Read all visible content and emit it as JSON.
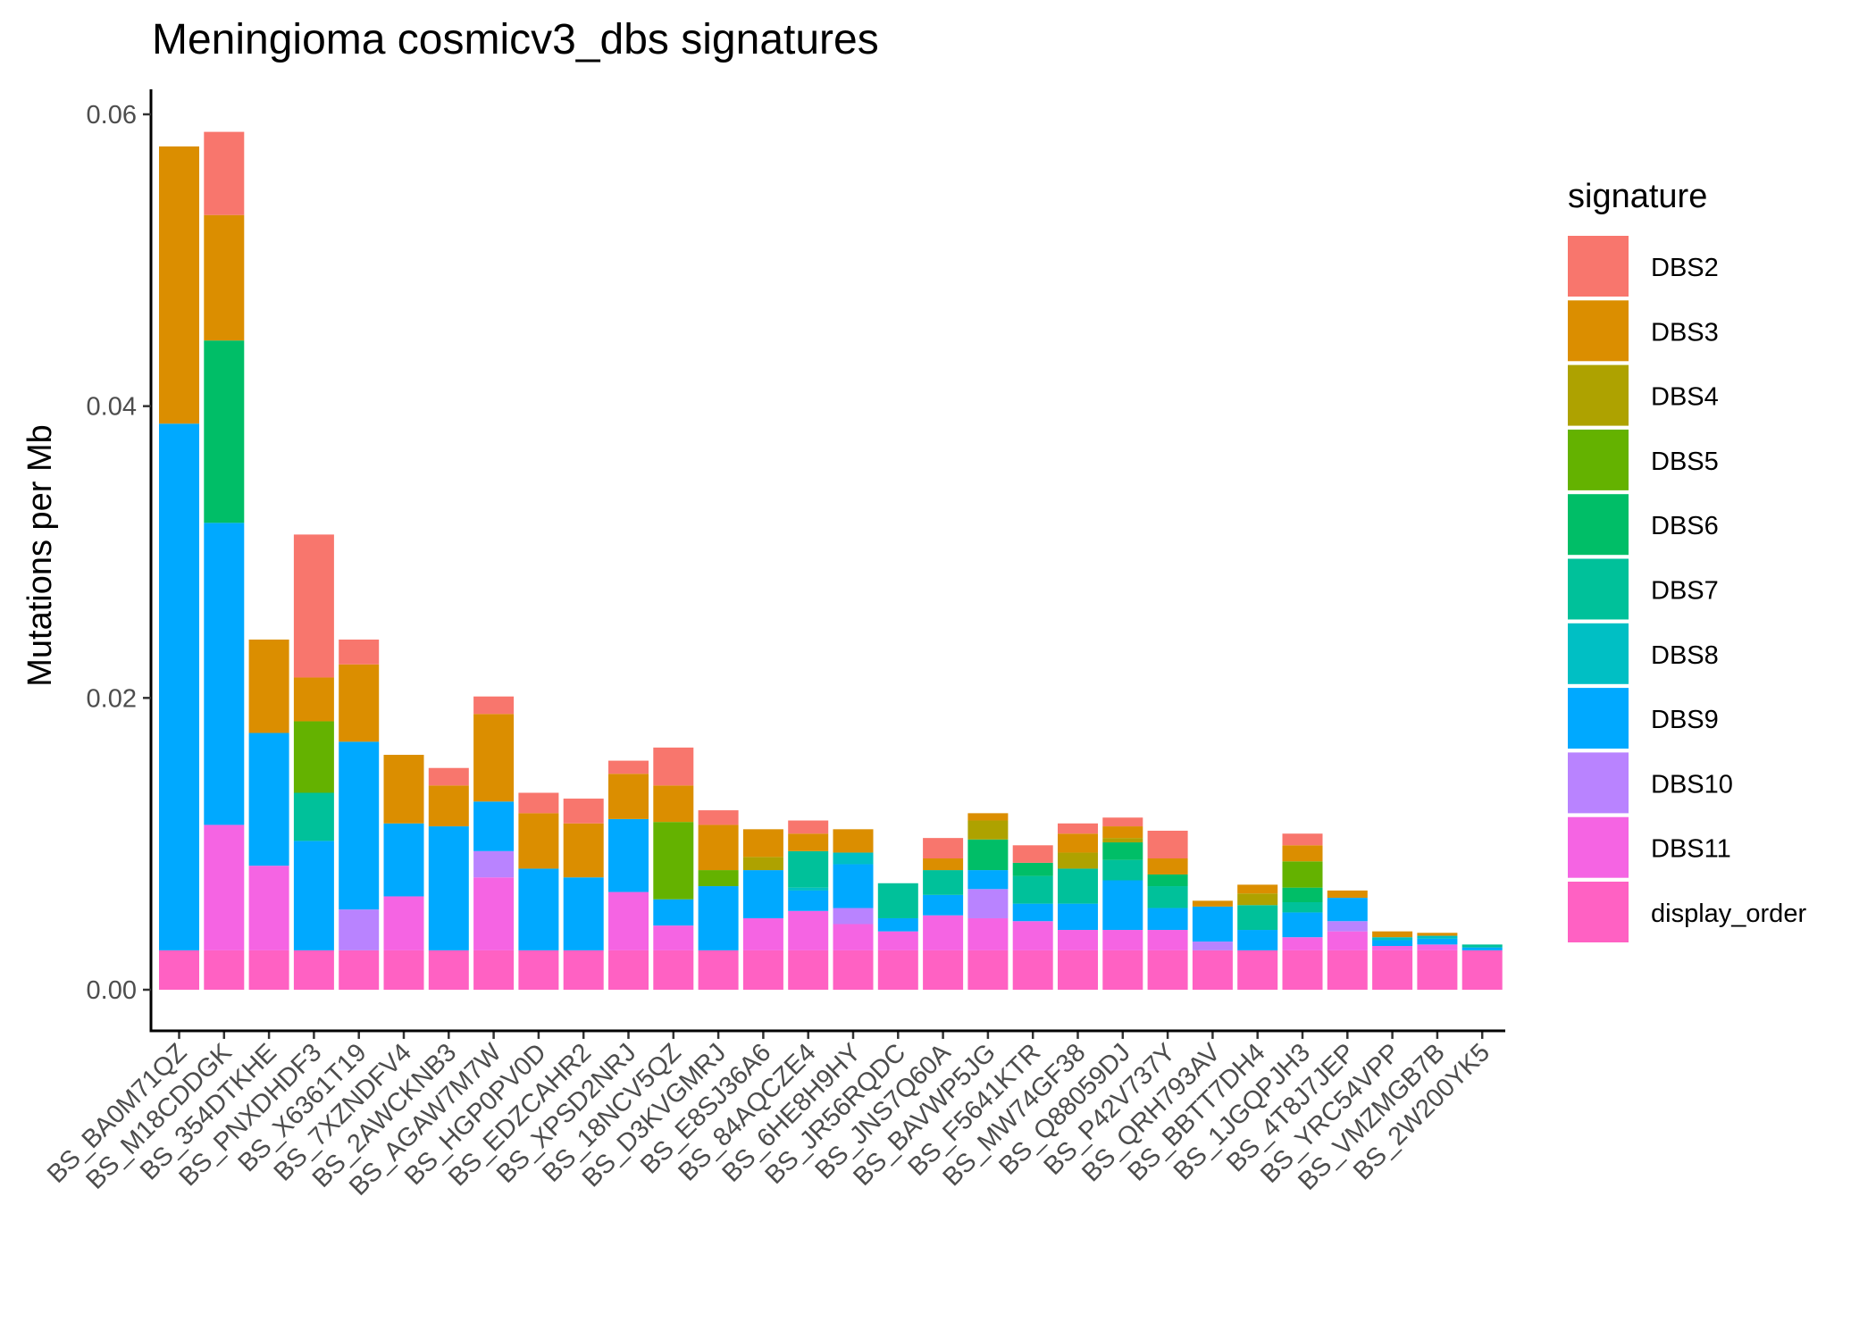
{
  "chart_data": {
    "type": "bar",
    "stacked": true,
    "title": "Meningioma cosmicv3_dbs signatures",
    "xlabel": "",
    "ylabel": "Mutations per Mb",
    "ylim": [
      0,
      0.0605
    ],
    "yticks": [
      0.0,
      0.02,
      0.04,
      0.06
    ],
    "ytick_labels": [
      "0.00",
      "0.02",
      "0.04",
      "0.06"
    ],
    "grid": false,
    "legend": {
      "title": "signature",
      "position": "right"
    },
    "categories": [
      "BS_BA0M71QZ",
      "BS_M18CDDGK",
      "BS_354DTKHE",
      "BS_PNXDHDF3",
      "BS_X6361T19",
      "BS_7XZNDFV4",
      "BS_2AWCKNB3",
      "BS_AGAW7M7W",
      "BS_HGP0PV0D",
      "BS_EDZCAHR2",
      "BS_XPSD2NRJ",
      "BS_18NCV5QZ",
      "BS_D3KVGMRJ",
      "BS_E8SJ36A6",
      "BS_84AQCZE4",
      "BS_6HE8H9HY",
      "BS_JR56RQDC",
      "BS_JNS7Q60A",
      "BS_BAVWP5JG",
      "BS_F5641KTR",
      "BS_MW74GF38",
      "BS_Q88059DJ",
      "BS_P42V737Y",
      "BS_QRH793AV",
      "BS_BBTT7DH4",
      "BS_1JGQPJH3",
      "BS_4T8J7JEP",
      "BS_YRC54VPP",
      "BS_VMZMGB7B",
      "BS_2W200YK5"
    ],
    "series": [
      {
        "name": "display_order",
        "color": "#FF61C3",
        "values": [
          0.0027,
          0.0027,
          0.0027,
          0.0027,
          0.0027,
          0.0027,
          0.0027,
          0.0027,
          0.0027,
          0.0027,
          0.0027,
          0.0027,
          0.0027,
          0.0027,
          0.0027,
          0.0027,
          0.0027,
          0.0027,
          0.0027,
          0.0027,
          0.0027,
          0.0027,
          0.0027,
          0.0027,
          0.0027,
          0.0027,
          0.0027,
          0.0027,
          0.0027,
          0.0027
        ]
      },
      {
        "name": "DBS11",
        "color": "#F564E3",
        "values": [
          0,
          0.0086,
          0.0058,
          0,
          0,
          0.0037,
          0,
          0.005,
          0,
          0,
          0.004,
          0.0017,
          0,
          0.0022,
          0.0027,
          0.0018,
          0.0013,
          0.0024,
          0.0022,
          0.002,
          0.0014,
          0.0014,
          0.0014,
          0,
          0,
          0.0009,
          0.0013,
          0.0003,
          0.0004,
          0
        ]
      },
      {
        "name": "DBS10",
        "color": "#B983FF",
        "values": [
          0,
          0,
          0,
          0,
          0.0028,
          0,
          0,
          0.0018,
          0,
          0,
          0,
          0,
          0,
          0,
          0,
          0.0011,
          0,
          0,
          0.002,
          0,
          0,
          0,
          0,
          0.0006,
          0,
          0,
          0.0007,
          0,
          0,
          0
        ]
      },
      {
        "name": "DBS9",
        "color": "#00A9FF",
        "values": [
          0.0361,
          0.0207,
          0.0091,
          0.0075,
          0.0115,
          0.005,
          0.0085,
          0.0034,
          0.0056,
          0.005,
          0.005,
          0.0018,
          0.0044,
          0.0033,
          0.0014,
          0.003,
          0.0009,
          0.0014,
          0.0013,
          0.0012,
          0.0018,
          0.0034,
          0.0015,
          0.0024,
          0.0014,
          0.0017,
          0.0016,
          0.0004,
          0.0004,
          0.0002
        ]
      },
      {
        "name": "DBS8",
        "color": "#00BFC4",
        "values": [
          0,
          0,
          0,
          0,
          0,
          0,
          0,
          0,
          0,
          0,
          0,
          0,
          0,
          0,
          0.0002,
          0.0008,
          0,
          0,
          0,
          0,
          0,
          0,
          0,
          0,
          0,
          0,
          0,
          0.0002,
          0.0002,
          0
        ]
      },
      {
        "name": "DBS7",
        "color": "#00C19A",
        "values": [
          0,
          0,
          0,
          0.0033,
          0,
          0,
          0,
          0,
          0,
          0,
          0,
          0,
          0,
          0,
          0.0025,
          0,
          0.0024,
          0.0017,
          0,
          0.0019,
          0.0024,
          0.0014,
          0.0015,
          0,
          0.0017,
          0.0007,
          0,
          0,
          0,
          0.0002
        ]
      },
      {
        "name": "DBS6",
        "color": "#00BE67",
        "values": [
          0,
          0.0125,
          0,
          0,
          0,
          0,
          0,
          0,
          0,
          0,
          0,
          0,
          0,
          0,
          0,
          0,
          0,
          0,
          0.0021,
          0.0009,
          0,
          0.0012,
          0.0008,
          0,
          0,
          0.001,
          0,
          0,
          0,
          0
        ]
      },
      {
        "name": "DBS5",
        "color": "#64B200",
        "values": [
          0,
          0,
          0,
          0.0049,
          0,
          0,
          0,
          0,
          0,
          0,
          0,
          0.0053,
          0.0011,
          0,
          0,
          0,
          0,
          0,
          0,
          0,
          0,
          0,
          0,
          0,
          0,
          0.0018,
          0,
          0,
          0,
          0
        ]
      },
      {
        "name": "DBS4",
        "color": "#AEA200",
        "values": [
          0,
          0,
          0,
          0,
          0,
          0,
          0,
          0,
          0,
          0,
          0,
          0,
          0,
          0.0009,
          0,
          0,
          0,
          0,
          0.0013,
          0,
          0.0011,
          0.0003,
          0,
          0,
          0.0008,
          0,
          0,
          0,
          0,
          0
        ]
      },
      {
        "name": "DBS3",
        "color": "#DB8E00",
        "values": [
          0.019,
          0.0086,
          0.0064,
          0.003,
          0.0053,
          0.0047,
          0.0028,
          0.006,
          0.0038,
          0.0037,
          0.0031,
          0.0025,
          0.0031,
          0.0019,
          0.0012,
          0.0016,
          0,
          0.0008,
          0.0005,
          0,
          0.0013,
          0.0008,
          0.0011,
          0.0004,
          0.0006,
          0.0011,
          0.0005,
          0.0004,
          0.0002,
          0
        ]
      },
      {
        "name": "DBS2",
        "color": "#F8766D",
        "values": [
          0,
          0.0057,
          0,
          0.0098,
          0.0017,
          0,
          0.0012,
          0.0012,
          0.0014,
          0.0017,
          0.0009,
          0.0026,
          0.001,
          0,
          0.0009,
          0,
          0,
          0.0014,
          0,
          0.0012,
          0.0007,
          0.0006,
          0.0019,
          0,
          0,
          0.0008,
          0,
          0,
          0,
          0
        ]
      }
    ],
    "legend_order": [
      "DBS2",
      "DBS3",
      "DBS4",
      "DBS5",
      "DBS6",
      "DBS7",
      "DBS8",
      "DBS9",
      "DBS10",
      "DBS11",
      "display_order"
    ]
  }
}
